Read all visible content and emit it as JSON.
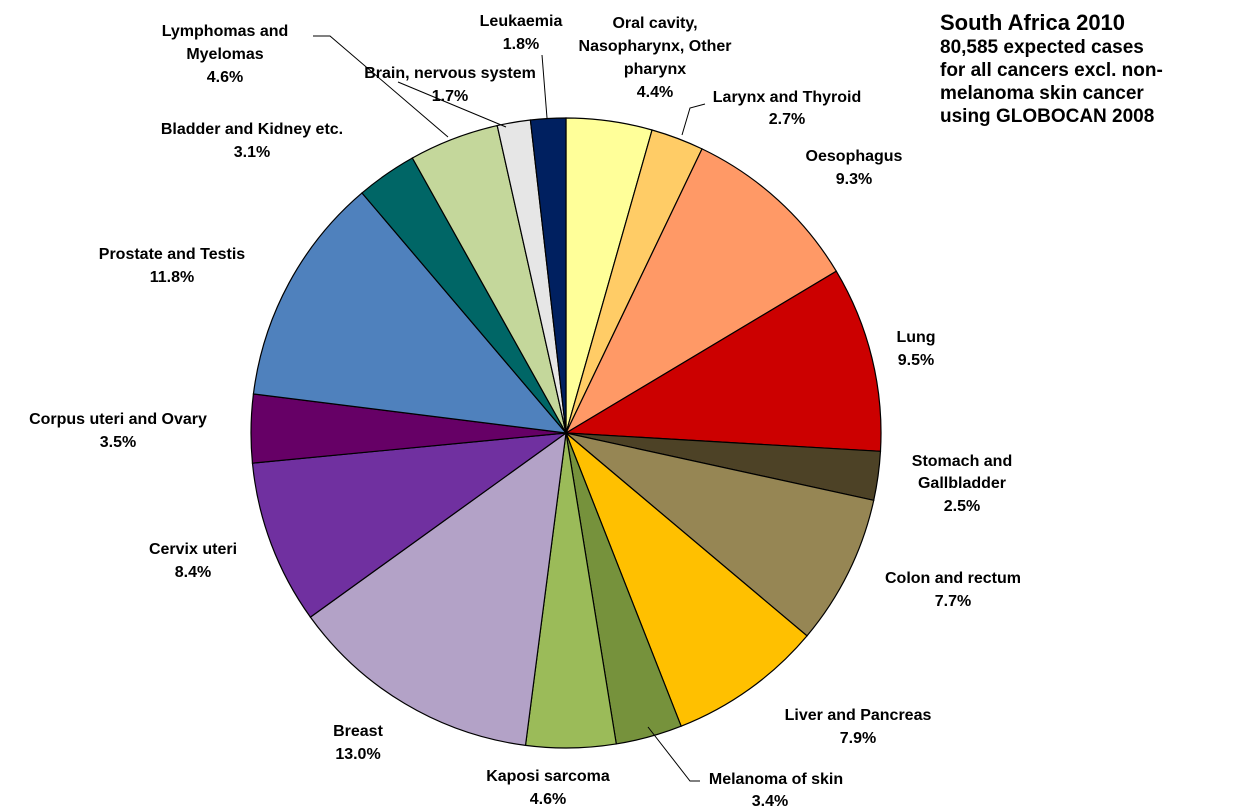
{
  "title": "South Africa 2010",
  "subtitle": "80,585 expected cases\nfor all cancers excl. non-\nmelanoma skin cancer\nusing GLOBOCAN 2008",
  "chart_data": {
    "type": "pie",
    "title": "South Africa 2010",
    "subtitle": "80,585 expected cases for all cancers excl. non-melanoma skin cancer using GLOBOCAN 2008",
    "unit": "%",
    "slices": [
      {
        "label": "Oral cavity, Nasopharynx, Other pharynx",
        "value": 4.4,
        "value_label": "4.4%",
        "color": "#FFFF99"
      },
      {
        "label": "Larynx and Thyroid",
        "value": 2.7,
        "value_label": "2.7%",
        "color": "#FFCC66"
      },
      {
        "label": "Oesophagus",
        "value": 9.3,
        "value_label": "9.3%",
        "color": "#FF9966"
      },
      {
        "label": "Lung",
        "value": 9.5,
        "value_label": "9.5%",
        "color": "#CC0000"
      },
      {
        "label": "Stomach and Gallbladder",
        "value": 2.5,
        "value_label": "2.5%",
        "color": "#4D4226"
      },
      {
        "label": "Colon and rectum",
        "value": 7.7,
        "value_label": "7.7%",
        "color": "#968654"
      },
      {
        "label": "Liver and Pancreas",
        "value": 7.9,
        "value_label": "7.9%",
        "color": "#FFC000"
      },
      {
        "label": "Melanoma of skin",
        "value": 3.4,
        "value_label": "3.4%",
        "color": "#76923C"
      },
      {
        "label": "Kaposi sarcoma",
        "value": 4.6,
        "value_label": "4.6%",
        "color": "#9BBB59"
      },
      {
        "label": "Breast",
        "value": 13.0,
        "value_label": "13.0%",
        "color": "#B3A2C7"
      },
      {
        "label": "Cervix uteri",
        "value": 8.4,
        "value_label": "8.4%",
        "color": "#7030A0"
      },
      {
        "label": "Corpus uteri and Ovary",
        "value": 3.5,
        "value_label": "3.5%",
        "color": "#660066"
      },
      {
        "label": "Prostate and Testis",
        "value": 11.8,
        "value_label": "11.8%",
        "color": "#4F81BD"
      },
      {
        "label": "Bladder and Kidney etc.",
        "value": 3.1,
        "value_label": "3.1%",
        "color": "#006666"
      },
      {
        "label": "Lymphomas and Myelomas",
        "value": 4.6,
        "value_label": "4.6%",
        "color": "#C4D79B"
      },
      {
        "label": "Brain, nervous system",
        "value": 1.7,
        "value_label": "1.7%",
        "color": "#E6E6E6"
      },
      {
        "label": "Leukaemia",
        "value": 1.8,
        "value_label": "1.8%",
        "color": "#002060"
      }
    ]
  }
}
